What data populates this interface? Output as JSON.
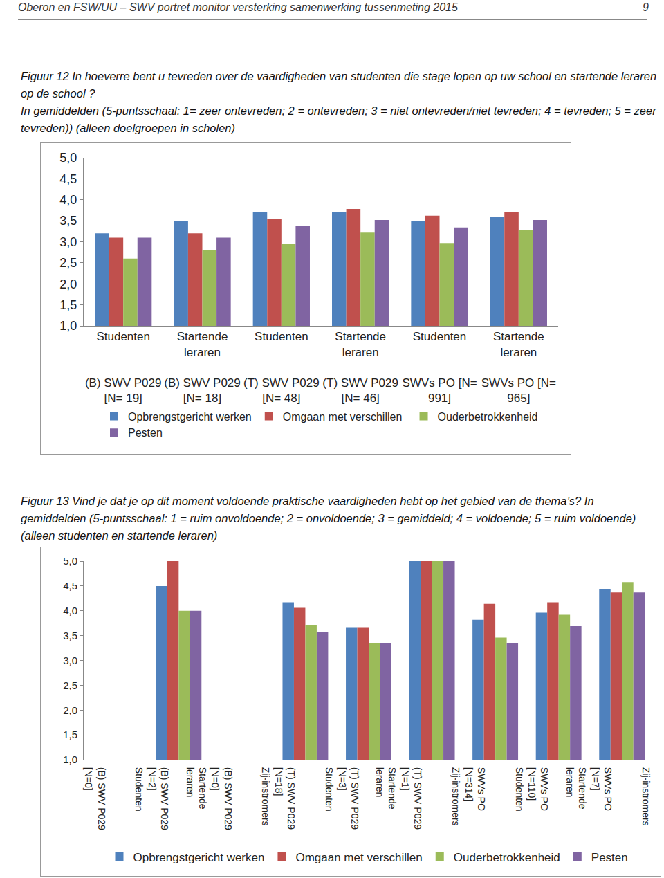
{
  "page": {
    "header": "Oberon en FSW/UU – SWV portret monitor versterking samenwerking tussenmeting 2015",
    "page_number": "9"
  },
  "chart_data": [
    {
      "type": "bar",
      "title": "Figuur 12 In hoeverre bent u tevreden over de vaardigheden van studenten die stage lopen op uw school en startende leraren op de school ?\nIn gemiddelden (5-puntsschaal: 1= zeer ontevreden; 2 = ontevreden; 3 = niet ontevreden/niet tevreden; 4 = tevreden; 5 = zeer tevreden)) (alleen doelgroepen in scholen)",
      "categories": [
        "Studenten\n\n\n(B) SWV P029\n[N= 19]",
        "Startende\nleraren\n\n(B) SWV P029\n[N= 18]",
        "Studenten\n\n\n(T) SWV P029\n[N= 48]",
        "Startende\nleraren\n\n(T) SWV P029\n[N= 46]",
        "Studenten\n\n\nSWVs PO [N=\n991]",
        "Startende\nleraren\n\nSWVs PO [N=\n965]"
      ],
      "series": [
        {
          "name": "Opbrengstgericht werken",
          "color": "#4f81bd",
          "values": [
            3.2,
            3.5,
            3.7,
            3.7,
            3.5,
            3.6
          ]
        },
        {
          "name": "Omgaan met verschillen",
          "color": "#c0504d",
          "values": [
            3.1,
            3.2,
            3.55,
            3.78,
            3.62,
            3.7
          ]
        },
        {
          "name": "Ouderbetrokkenheid",
          "color": "#9bbb59",
          "values": [
            2.6,
            2.8,
            2.95,
            3.22,
            2.97,
            3.28
          ]
        },
        {
          "name": "Pesten",
          "color": "#8064a2",
          "values": [
            3.1,
            3.1,
            3.37,
            3.52,
            3.34,
            3.52
          ]
        }
      ],
      "ylim": [
        1,
        5
      ],
      "yticks": [
        {
          "value": 1,
          "label": "1,0"
        },
        {
          "value": 1.5,
          "label": "1,5"
        },
        {
          "value": 2,
          "label": "2,0"
        },
        {
          "value": 2.5,
          "label": "2,5"
        },
        {
          "value": 3,
          "label": "3,0"
        },
        {
          "value": 3.5,
          "label": "3,5"
        },
        {
          "value": 4,
          "label": "4,0"
        },
        {
          "value": 4.5,
          "label": "4,5"
        },
        {
          "value": 5,
          "label": "5,0"
        }
      ],
      "grid": false,
      "legend": "bottom"
    },
    {
      "type": "bar",
      "title": "Figuur 13 Vind je dat je op dit moment voldoende praktische vaardigheden hebt op het gebied van de thema’s? In gemiddelden (5-puntsschaal: 1 = ruim onvoldoende; 2 = onvoldoende; 3 = gemiddeld; 4 = voldoende; 5 = ruim voldoende) (alleen studenten en startende leraren)",
      "categories": [
        "Studenten\n\n\n(B) SWV P029\n[N=0]",
        "Startende\nleraren\n\n(B) SWV P029\n[N=2]",
        "Zij-instromers\n\n\n(B) SWV P029\n[N=0]",
        "Studenten\n\n\n(T) SWV P029\n[N=18]",
        "Startende\nleraren\n\n(T) SWV P029\n[N=3]",
        "Zij-instromers\n\n\n(T) SWV P029\n[N=1]",
        "Studenten\n\n\nSWVs PO\n[N=314]",
        "Startende\nleraren\n\nSWVs PO\n[N=110]",
        "Zij-instromers\n\n\nSWVs PO\n[N=7]"
      ],
      "series": [
        {
          "name": "Opbrengstgericht werken",
          "color": "#4f81bd",
          "values": [
            1,
            4.5,
            1,
            4.17,
            3.67,
            5,
            3.82,
            3.96,
            4.43
          ]
        },
        {
          "name": "Omgaan met verschillen",
          "color": "#c0504d",
          "values": [
            1,
            5,
            1,
            4.06,
            3.67,
            5,
            4.14,
            4.17,
            4.37
          ]
        },
        {
          "name": "Ouderbetrokkenheid",
          "color": "#9bbb59",
          "values": [
            1,
            4,
            1,
            3.71,
            3.35,
            5,
            3.46,
            3.92,
            4.58
          ]
        },
        {
          "name": "Pesten",
          "color": "#8064a2",
          "values": [
            1,
            4,
            1,
            3.58,
            3.35,
            5,
            3.35,
            3.69,
            4.37
          ]
        }
      ],
      "ylim": [
        1,
        5
      ],
      "yticks": [
        {
          "value": 1,
          "label": "1,0"
        },
        {
          "value": 1.5,
          "label": "1,5"
        },
        {
          "value": 2,
          "label": "2,0"
        },
        {
          "value": 2.5,
          "label": "2,5"
        },
        {
          "value": 3,
          "label": "3,0"
        },
        {
          "value": 3.5,
          "label": "3,5"
        },
        {
          "value": 4,
          "label": "4,0"
        },
        {
          "value": 4.5,
          "label": "4,5"
        },
        {
          "value": 5,
          "label": "5,0"
        }
      ],
      "grid": false,
      "legend": "bottom"
    }
  ]
}
